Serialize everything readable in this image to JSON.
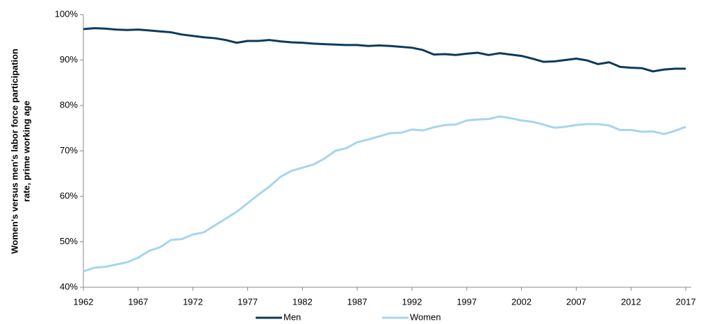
{
  "chart_data": {
    "type": "line",
    "ylabel": [
      "Women's versus men's labor force participation",
      "rate, prime working age"
    ],
    "x": [
      1962,
      1963,
      1964,
      1965,
      1966,
      1967,
      1968,
      1969,
      1970,
      1971,
      1972,
      1973,
      1974,
      1975,
      1976,
      1977,
      1978,
      1979,
      1980,
      1981,
      1982,
      1983,
      1984,
      1985,
      1986,
      1987,
      1988,
      1989,
      1990,
      1991,
      1992,
      1993,
      1994,
      1995,
      1996,
      1997,
      1998,
      1999,
      2000,
      2001,
      2002,
      2003,
      2004,
      2005,
      2006,
      2007,
      2008,
      2009,
      2010,
      2011,
      2012,
      2013,
      2014,
      2015,
      2016,
      2017
    ],
    "series": [
      {
        "name": "Men",
        "color": "#0b3a5c",
        "values": [
          96.8,
          97.0,
          96.9,
          96.7,
          96.6,
          96.7,
          96.5,
          96.3,
          96.1,
          95.6,
          95.3,
          95.0,
          94.8,
          94.4,
          93.8,
          94.2,
          94.2,
          94.4,
          94.1,
          93.9,
          93.8,
          93.6,
          93.5,
          93.4,
          93.3,
          93.3,
          93.1,
          93.2,
          93.1,
          92.9,
          92.7,
          92.2,
          91.2,
          91.3,
          91.1,
          91.4,
          91.6,
          91.1,
          91.5,
          91.2,
          90.9,
          90.3,
          89.6,
          89.7,
          90.0,
          90.3,
          89.9,
          89.1,
          89.5,
          88.5,
          88.3,
          88.2,
          87.5,
          87.9,
          88.1,
          88.1
        ]
      },
      {
        "name": "Women",
        "color": "#a6d5ee",
        "values": [
          43.5,
          44.3,
          44.5,
          45.0,
          45.5,
          46.5,
          48.0,
          48.8,
          50.4,
          50.6,
          51.6,
          52.1,
          53.6,
          55.1,
          56.6,
          58.5,
          60.4,
          62.2,
          64.3,
          65.6,
          66.3,
          67.0,
          68.3,
          70.0,
          70.6,
          71.9,
          72.5,
          73.2,
          73.9,
          74.0,
          74.7,
          74.5,
          75.2,
          75.7,
          75.8,
          76.7,
          76.9,
          77.0,
          77.6,
          77.2,
          76.7,
          76.4,
          75.8,
          75.1,
          75.3,
          75.7,
          75.9,
          75.9,
          75.6,
          74.6,
          74.6,
          74.2,
          74.3,
          73.7,
          74.4,
          75.3
        ]
      }
    ],
    "xlim": [
      1962,
      2017.5
    ],
    "xticks": [
      1962,
      1967,
      1972,
      1977,
      1982,
      1987,
      1992,
      1997,
      2002,
      2007,
      2012,
      2017
    ],
    "ylim": [
      40,
      100
    ],
    "yticks": [
      {
        "value": 40,
        "label": "40%"
      },
      {
        "value": 50,
        "label": "50%"
      },
      {
        "value": 60,
        "label": "60%"
      },
      {
        "value": 70,
        "label": "70%"
      },
      {
        "value": 80,
        "label": "80%"
      },
      {
        "value": 90,
        "label": "90%"
      },
      {
        "value": 100,
        "label": "100%"
      }
    ],
    "legend": "bottom"
  }
}
